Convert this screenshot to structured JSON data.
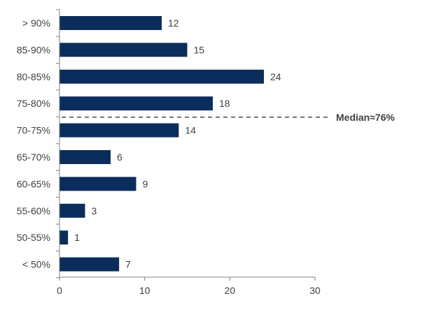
{
  "chart_data": {
    "type": "bar",
    "orientation": "horizontal",
    "categories": [
      "> 90%",
      "85-90%",
      "80-85%",
      "75-80%",
      "70-75%",
      "65-70%",
      "60-65%",
      "55-60%",
      "50-55%",
      "< 50%"
    ],
    "values": [
      12,
      15,
      24,
      18,
      14,
      6,
      9,
      3,
      1,
      7
    ],
    "xlim": [
      0,
      30
    ],
    "xticks": [
      0,
      10,
      20,
      30
    ],
    "title": "",
    "xlabel": "",
    "ylabel": "",
    "bar_color": "#0b2d5b",
    "reference_line": {
      "label": "Median≈76%",
      "style": "dashed",
      "between": [
        "75-80%",
        "70-75%"
      ]
    }
  }
}
